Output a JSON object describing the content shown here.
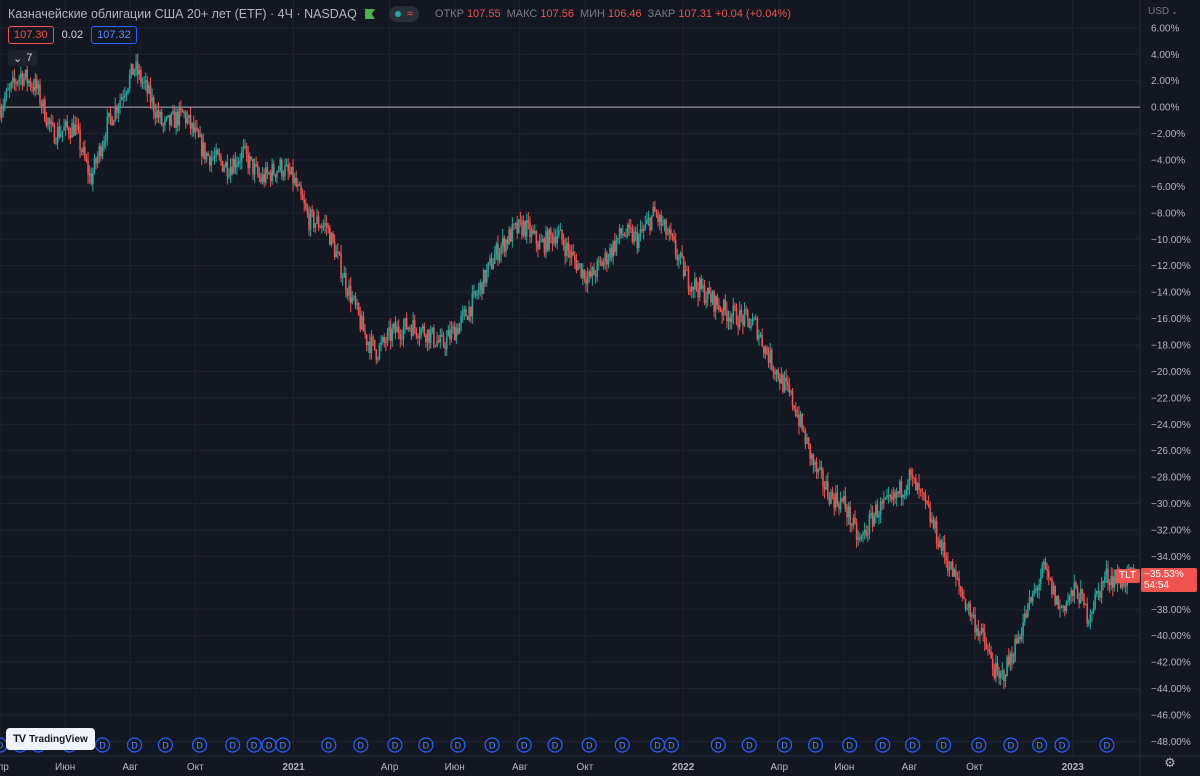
{
  "header": {
    "title": "Казначейские облигации США 20+ лет (ETF) · 4Ч · NASDAQ",
    "wave_icon": "wave-icon",
    "ohlc": [
      {
        "label": "ОТКР",
        "value": "107.55"
      },
      {
        "label": "МАКС",
        "value": "107.56"
      },
      {
        "label": "МИН",
        "value": "106.46"
      },
      {
        "label": "ЗАКР",
        "value": "107.31"
      },
      {
        "label": "",
        "value": "+0.04 (+0.04%)"
      }
    ]
  },
  "quote": {
    "sell": "107.30",
    "spread": "0.02",
    "buy": "107.32"
  },
  "indicators_toggle": {
    "count": "7"
  },
  "currency": {
    "label": "USD"
  },
  "branding": {
    "name": "TradingView"
  },
  "marker": {
    "symbol": "TLT",
    "percent": "−35.53%",
    "countdown": "54:54"
  },
  "chart_data": {
    "type": "candlestick",
    "symbol": "TLT",
    "scale": "percent",
    "ylim": [
      -48.5,
      7.5
    ],
    "y_ticks": [
      6,
      4,
      2,
      0,
      -2,
      -4,
      -6,
      -8,
      -10,
      -12,
      -14,
      -16,
      -18,
      -20,
      -22,
      -24,
      -26,
      -28,
      -30,
      -32,
      -34,
      -36,
      -38,
      -40,
      -42,
      -44,
      -46,
      -48
    ],
    "y_tick_labels": [
      "6.00%",
      "4.00%",
      "2.00%",
      "0.00%",
      "−2.00%",
      "−4.00%",
      "−6.00%",
      "−8.00%",
      "−10.00%",
      "−12.00%",
      "−14.00%",
      "−16.00%",
      "−18.00%",
      "−20.00%",
      "−22.00%",
      "−24.00%",
      "−26.00%",
      "−28.00%",
      "−30.00%",
      "−32.00%",
      "−34.00%",
      "−36.00%",
      "−38.00%",
      "−40.00%",
      "−42.00%",
      "−44.00%",
      "−46.00%",
      "−48.00%"
    ],
    "x_range": [
      "2020-04-01",
      "2023-03-05"
    ],
    "x_ticks": [
      {
        "date": "2020-04-01",
        "label": "Апр",
        "major": false
      },
      {
        "date": "2020-06-01",
        "label": "Июн",
        "major": false
      },
      {
        "date": "2020-08-01",
        "label": "Авг",
        "major": false
      },
      {
        "date": "2020-10-01",
        "label": "Окт",
        "major": false
      },
      {
        "date": "2021-01-01",
        "label": "2021",
        "major": true
      },
      {
        "date": "2021-04-01",
        "label": "Апр",
        "major": false
      },
      {
        "date": "2021-06-01",
        "label": "Июн",
        "major": false
      },
      {
        "date": "2021-08-01",
        "label": "Авг",
        "major": false
      },
      {
        "date": "2021-10-01",
        "label": "Окт",
        "major": false
      },
      {
        "date": "2022-01-01",
        "label": "2022",
        "major": true
      },
      {
        "date": "2022-04-01",
        "label": "Апр",
        "major": false
      },
      {
        "date": "2022-06-01",
        "label": "Июн",
        "major": false
      },
      {
        "date": "2022-08-01",
        "label": "Авг",
        "major": false
      },
      {
        "date": "2022-10-01",
        "label": "Окт",
        "major": false
      },
      {
        "date": "2023-01-01",
        "label": "2023",
        "major": true
      }
    ],
    "baseline": 0,
    "up_color": "#26a69a",
    "down_color": "#ef5350",
    "path_points": [
      [
        "2020-04-01",
        0
      ],
      [
        "2020-04-20",
        2.5
      ],
      [
        "2020-05-05",
        1.5
      ],
      [
        "2020-05-20",
        -2
      ],
      [
        "2020-06-10",
        -1.5
      ],
      [
        "2020-06-25",
        -5.5
      ],
      [
        "2020-07-10",
        -1.5
      ],
      [
        "2020-08-05",
        3
      ],
      [
        "2020-08-15",
        1.5
      ],
      [
        "2020-09-01",
        -1.5
      ],
      [
        "2020-09-20",
        -0.5
      ],
      [
        "2020-10-10",
        -3.5
      ],
      [
        "2020-11-01",
        -4.5
      ],
      [
        "2020-11-15",
        -3.5
      ],
      [
        "2020-12-01",
        -5.5
      ],
      [
        "2020-12-20",
        -4.5
      ],
      [
        "2021-01-01",
        -5.5
      ],
      [
        "2021-01-15",
        -8.5
      ],
      [
        "2021-02-01",
        -9
      ],
      [
        "2021-02-20",
        -13.5
      ],
      [
        "2021-03-10",
        -17.5
      ],
      [
        "2021-03-20",
        -18.5
      ],
      [
        "2021-04-05",
        -17
      ],
      [
        "2021-04-20",
        -16.5
      ],
      [
        "2021-05-05",
        -17
      ],
      [
        "2021-05-20",
        -18
      ],
      [
        "2021-06-05",
        -16.5
      ],
      [
        "2021-06-20",
        -14.5
      ],
      [
        "2021-07-10",
        -11
      ],
      [
        "2021-07-25",
        -9.5
      ],
      [
        "2021-08-05",
        -9
      ],
      [
        "2021-08-20",
        -10.5
      ],
      [
        "2021-09-05",
        -9.5
      ],
      [
        "2021-09-20",
        -11.5
      ],
      [
        "2021-10-05",
        -13
      ],
      [
        "2021-10-20",
        -11.5
      ],
      [
        "2021-11-05",
        -9.5
      ],
      [
        "2021-11-20",
        -10
      ],
      [
        "2021-12-05",
        -8
      ],
      [
        "2021-12-20",
        -10
      ],
      [
        "2022-01-05",
        -13
      ],
      [
        "2022-01-20",
        -14
      ],
      [
        "2022-02-10",
        -15.5
      ],
      [
        "2022-02-25",
        -16
      ],
      [
        "2022-03-10",
        -16.5
      ],
      [
        "2022-03-20",
        -18.5
      ],
      [
        "2022-04-05",
        -21
      ],
      [
        "2022-04-15",
        -22.5
      ],
      [
        "2022-04-25",
        -25
      ],
      [
        "2022-05-05",
        -27.5
      ],
      [
        "2022-05-20",
        -29.5
      ],
      [
        "2022-06-01",
        -30
      ],
      [
        "2022-06-15",
        -33
      ],
      [
        "2022-07-01",
        -30.5
      ],
      [
        "2022-07-15",
        -30
      ],
      [
        "2022-08-01",
        -28
      ],
      [
        "2022-08-15",
        -30
      ],
      [
        "2022-09-01",
        -33.5
      ],
      [
        "2022-09-20",
        -37
      ],
      [
        "2022-10-10",
        -40.5
      ],
      [
        "2022-10-24",
        -43.5
      ],
      [
        "2022-11-05",
        -41.5
      ],
      [
        "2022-11-20",
        -38
      ],
      [
        "2022-12-05",
        -35
      ],
      [
        "2022-12-20",
        -38
      ],
      [
        "2023-01-05",
        -36.5
      ],
      [
        "2023-01-15",
        -38.5
      ],
      [
        "2023-02-01",
        -35.5
      ],
      [
        "2023-02-15",
        -35.8
      ],
      [
        "2023-03-01",
        -35.53
      ]
    ],
    "bar_interval": "4H",
    "dividend_marker_label": "D",
    "dividend_dates": [
      "2020-04-01",
      "2020-04-20",
      "2020-05-07",
      "2020-06-05",
      "2020-07-06",
      "2020-08-05",
      "2020-09-03",
      "2020-10-05",
      "2020-11-05",
      "2020-11-25",
      "2020-12-09",
      "2020-12-22",
      "2021-02-03",
      "2021-03-05",
      "2021-04-06",
      "2021-05-05",
      "2021-06-04",
      "2021-07-06",
      "2021-08-05",
      "2021-09-03",
      "2021-10-05",
      "2021-11-05",
      "2021-12-08",
      "2021-12-21",
      "2022-02-03",
      "2022-03-04",
      "2022-04-06",
      "2022-05-05",
      "2022-06-06",
      "2022-07-07",
      "2022-08-04",
      "2022-09-02",
      "2022-10-05",
      "2022-11-04",
      "2022-12-01",
      "2022-12-22",
      "2023-02-02"
    ]
  }
}
